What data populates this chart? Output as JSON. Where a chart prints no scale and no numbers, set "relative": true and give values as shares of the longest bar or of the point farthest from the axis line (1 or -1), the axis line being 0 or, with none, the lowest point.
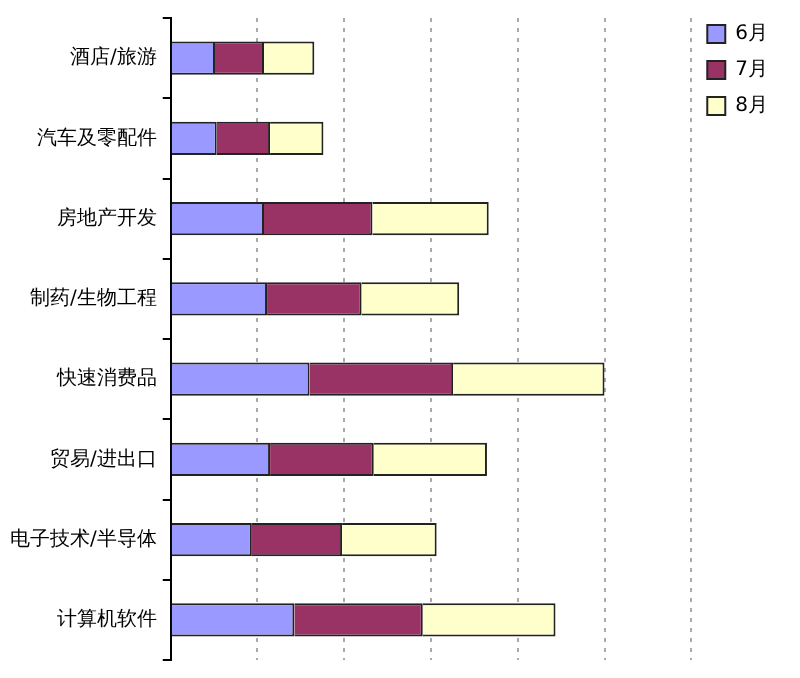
{
  "chart_data": {
    "type": "bar",
    "orientation": "horizontal",
    "stacked": true,
    "relative": true,
    "grid": "x",
    "legend": "top right",
    "categories": [
      "酒店/旅游",
      "汽车及零配件",
      "房地产开发",
      "制药/生物工程",
      "快速消费品",
      "贸易/进出口",
      "电子技术/半导体",
      "计算机软件"
    ],
    "series": [
      {
        "name": "6月",
        "color": "#9999ff",
        "values": [
          0.102,
          0.106,
          0.215,
          0.222,
          0.32,
          0.229,
          0.187,
          0.285
        ]
      },
      {
        "name": "7月",
        "color": "#993366",
        "values": [
          0.113,
          0.123,
          0.25,
          0.218,
          0.331,
          0.239,
          0.208,
          0.296
        ]
      },
      {
        "name": "8月",
        "color": "#ffffcc",
        "values": [
          0.116,
          0.123,
          0.268,
          0.225,
          0.349,
          0.261,
          0.218,
          0.306
        ]
      }
    ]
  }
}
